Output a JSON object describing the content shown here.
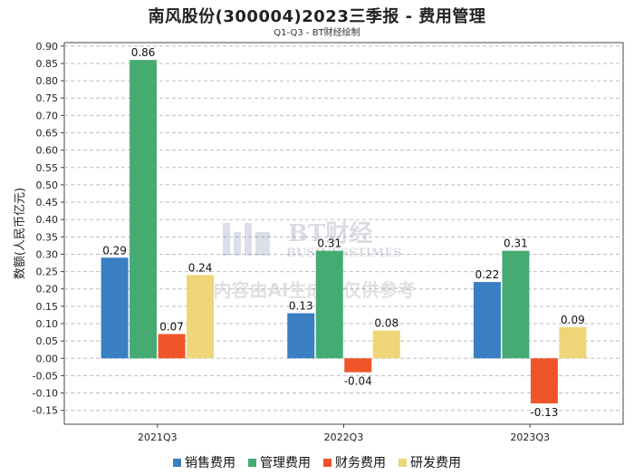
{
  "title": "南风股份(300004)2023三季报 - 费用管理",
  "subtitle": "Q1-Q3 - BT财经绘制",
  "watermark": {
    "brand": "BT财经",
    "brand_sub": "BUSINESSTIMES",
    "notice": "内容由AI生成，仅供参考"
  },
  "chart_data": {
    "type": "bar",
    "title": "南风股份(300004)2023三季报 - 费用管理",
    "subtitle": "Q1-Q3 - BT财经绘制",
    "xlabel": "",
    "ylabel": "数额(人民币亿元)",
    "ylim": [
      -0.19,
      0.91
    ],
    "yticks": [
      -0.15,
      -0.1,
      -0.05,
      0.0,
      0.05,
      0.1,
      0.15,
      0.2,
      0.25,
      0.3,
      0.35,
      0.4,
      0.45,
      0.5,
      0.55,
      0.6,
      0.65,
      0.7,
      0.75,
      0.8,
      0.85,
      0.9
    ],
    "grid": true,
    "legend_position": "bottom",
    "categories": [
      "2021Q3",
      "2022Q3",
      "2023Q3"
    ],
    "series": [
      {
        "name": "销售费用",
        "color": "#3a7fc1",
        "values": [
          0.29,
          0.13,
          0.22
        ],
        "labels": [
          "0.29",
          "0.13",
          "0.22"
        ]
      },
      {
        "name": "管理费用",
        "color": "#46ab73",
        "values": [
          0.86,
          0.31,
          0.31
        ],
        "labels": [
          "0.86",
          "0.31",
          "0.31"
        ]
      },
      {
        "name": "财务费用",
        "color": "#f0552a",
        "values": [
          0.07,
          -0.04,
          -0.13
        ],
        "labels": [
          "0.07",
          "-0.04",
          "-0.13"
        ]
      },
      {
        "name": "研发费用",
        "color": "#eed577",
        "values": [
          0.24,
          0.08,
          0.09
        ],
        "labels": [
          "0.24",
          "0.08",
          "0.09"
        ]
      }
    ]
  }
}
